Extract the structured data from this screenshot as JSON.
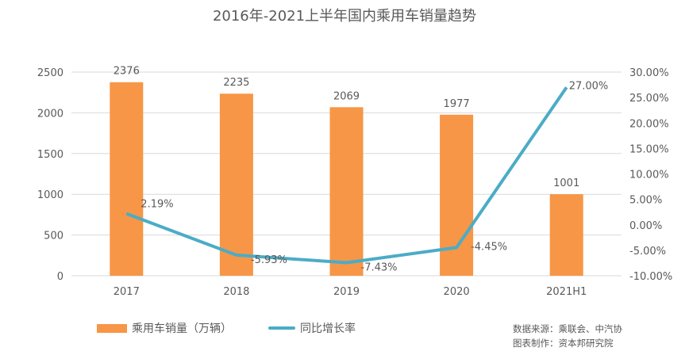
{
  "chart_data": {
    "type": "bar+line",
    "title": "2016年-2021上半年国内乘用车销量趋势",
    "categories": [
      "2017",
      "2018",
      "2019",
      "2020",
      "2021H1"
    ],
    "series": [
      {
        "name": "乘用车销量（万辆）",
        "type": "bar",
        "axis": "left",
        "values": [
          2376,
          2235,
          2069,
          1977,
          1001
        ],
        "labels": [
          "2376",
          "2235",
          "2069",
          "1977",
          "1001"
        ],
        "color": "#F79646"
      },
      {
        "name": "同比增长率",
        "type": "line",
        "axis": "right",
        "values": [
          2.19,
          -5.93,
          -7.43,
          -4.45,
          27.0
        ],
        "labels": [
          "2.19%",
          "-5.93%",
          "-7.43%",
          "-4.45%",
          "27.00%"
        ],
        "color": "#4BACC6"
      }
    ],
    "left_axis": {
      "ylim": [
        0,
        2500
      ],
      "ticks": [
        "0",
        "500",
        "1000",
        "1500",
        "2000",
        "2500"
      ]
    },
    "right_axis": {
      "ylim": [
        -10,
        30
      ],
      "ticks": [
        "-10.00%",
        "-5.00%",
        "0.00%",
        "5.00%",
        "10.00%",
        "15.00%",
        "20.00%",
        "25.00%",
        "30.00%"
      ]
    },
    "grid": true,
    "legend": "bottom"
  },
  "source": {
    "line1": "数据来源：乘联会、中汽协",
    "line2": "图表制作：资本邦研究院"
  }
}
